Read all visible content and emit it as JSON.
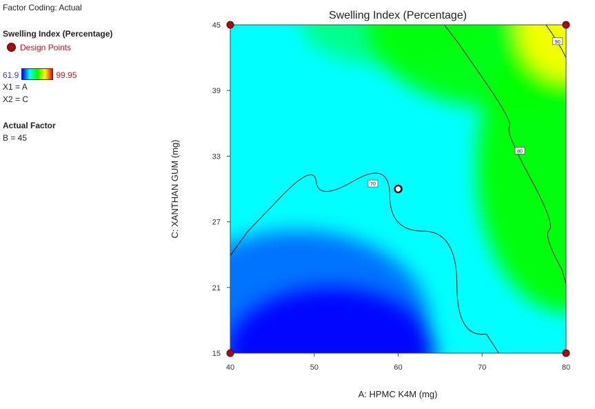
{
  "legend": {
    "factor_coding": "Factor Coding: Actual",
    "response_title": "Swelling Index (Percentage)",
    "design_points": "Design Points",
    "range_min": "61.9",
    "range_max": "99.95",
    "x1_map": "X1 = A",
    "x2_map": "X2 = C",
    "actual_factor_title": "Actual Factor",
    "actual_factor_value": "B = 45"
  },
  "colors": {
    "low": "#0000ff",
    "mid": "#00ffff",
    "high": "#00ff00",
    "top": "#ffff00",
    "design_point": "#a30d12",
    "contour_line": "#1a1a1a"
  },
  "chart_data": {
    "type": "heatmap",
    "title": "Swelling Index (Percentage)",
    "xlabel": "A: HPMC K4M (mg)",
    "ylabel": "C: XANTHAN GUM (mg)",
    "xlim": [
      40,
      80
    ],
    "ylim": [
      15,
      45
    ],
    "x_ticks": [
      40,
      50,
      60,
      70,
      80
    ],
    "y_ticks": [
      15,
      21,
      27,
      33,
      39,
      45
    ],
    "color_range": [
      61.9,
      99.95
    ],
    "grid": false,
    "contours": [
      {
        "label": "70",
        "level": 70,
        "points": [
          [
            40,
            23.9
          ],
          [
            44,
            28.2
          ],
          [
            48,
            30.3
          ],
          [
            52.5,
            31.0
          ],
          [
            57,
            30.5
          ],
          [
            61,
            28.3
          ],
          [
            65,
            24.0
          ],
          [
            69,
            18.5
          ],
          [
            72,
            15.0
          ]
        ]
      },
      {
        "label": "80",
        "level": 80,
        "points": [
          [
            65.5,
            45.0
          ],
          [
            69,
            41.5
          ],
          [
            72,
            37.8
          ],
          [
            74.5,
            33.5
          ],
          [
            77,
            28.5
          ],
          [
            79,
            24.0
          ],
          [
            80,
            21.3
          ]
        ]
      },
      {
        "label": "90",
        "level": 90,
        "points": [
          [
            77.6,
            45.0
          ],
          [
            79.0,
            43.5
          ],
          [
            80.0,
            42.0
          ]
        ]
      }
    ],
    "design_points": [
      {
        "x": 40,
        "y": 15
      },
      {
        "x": 80,
        "y": 15
      },
      {
        "x": 40,
        "y": 45
      },
      {
        "x": 80,
        "y": 45
      }
    ],
    "center_point": {
      "x": 60,
      "y": 30
    }
  }
}
